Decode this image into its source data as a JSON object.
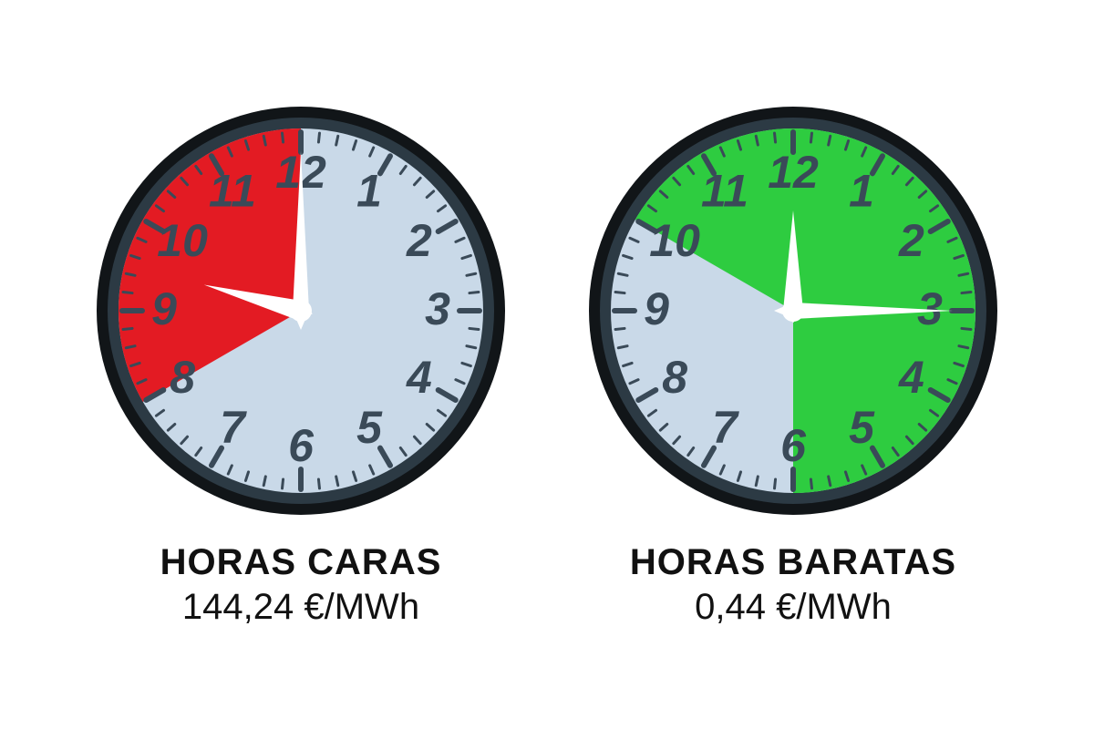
{
  "clocks": [
    {
      "title": "HORAS CARAS",
      "price": "144,24 €/MWh",
      "face_color": "#c9d9e8",
      "sector_color": "#e31b23",
      "sector_start_hour": 8,
      "sector_end_hour": 12,
      "hour_hand": 9.5,
      "minute_hand": 0,
      "rim_outer": "#111518",
      "rim_inner": "#2c3a44",
      "tick_color": "#3a4a58",
      "numeral_color": "#3a4a58",
      "hand_color": "#ffffff",
      "title_color": "#111111",
      "price_color": "#111111"
    },
    {
      "title": "HORAS BARATAS",
      "price": "0,44 €/MWh",
      "face_color": "#c9d9e8",
      "sector_color": "#2ecc40",
      "sector_start_hour": 10,
      "sector_end_hour": 18,
      "hour_hand": 0,
      "minute_hand": 15,
      "rim_outer": "#111518",
      "rim_inner": "#2c3a44",
      "tick_color": "#3a4a58",
      "numeral_color": "#3a4a58",
      "hand_color": "#ffffff",
      "title_color": "#111111",
      "price_color": "#111111"
    }
  ],
  "numeral_fontsize": 50,
  "caption_title_fontsize": 40,
  "caption_price_fontsize": 40
}
